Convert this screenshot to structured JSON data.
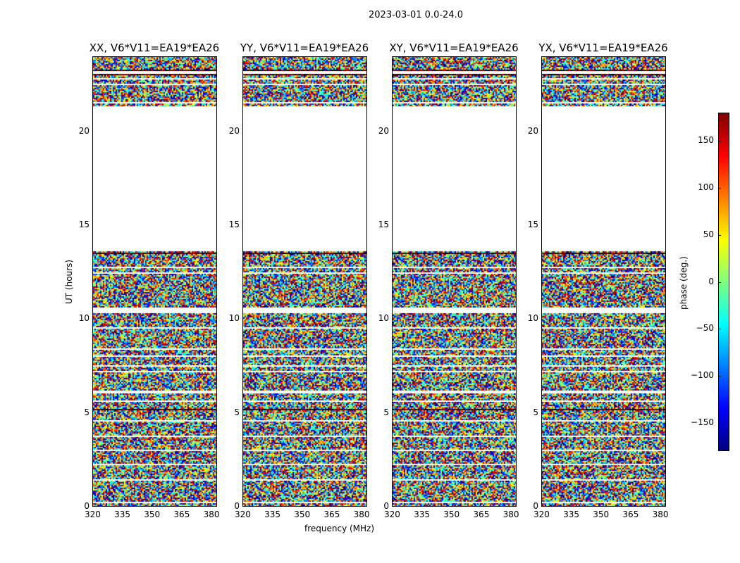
{
  "chart_data": {
    "type": "heatmap",
    "title": "2023-03-01 0.0-24.0",
    "xlabel": "frequency (MHz)",
    "ylabel": "UT (hours)",
    "xlim": [
      320,
      383
    ],
    "ylim": [
      0,
      24
    ],
    "xticks": [
      "320",
      "335",
      "350",
      "365",
      "380"
    ],
    "yticks": [
      "0",
      "5",
      "10",
      "15",
      "20"
    ],
    "colorbar": {
      "label": "phase (deg.)",
      "range": [
        -180,
        180
      ],
      "ticks": [
        "150",
        "100",
        "50",
        "0",
        "−50",
        "−100",
        "−150"
      ],
      "colormap": "jet"
    },
    "panels": [
      {
        "title": "XX, V6*V11=EA19*EA26"
      },
      {
        "title": "YY, V6*V11=EA19*EA26"
      },
      {
        "title": "XY, V6*V11=EA19*EA26"
      },
      {
        "title": "YX, V6*V11=EA19*EA26"
      }
    ],
    "values_description_only": "random phase noise",
    "blank_time_ranges_hours": [
      [
        0.15,
        0.22
      ],
      [
        1.35,
        1.42
      ],
      [
        2.2,
        2.27
      ],
      [
        2.95,
        3.02
      ],
      [
        3.7,
        3.77
      ],
      [
        4.55,
        4.6
      ],
      [
        5.55,
        5.62
      ],
      [
        6.0,
        6.2
      ],
      [
        7.15,
        7.22
      ],
      [
        7.45,
        7.52
      ],
      [
        8.0,
        8.07
      ],
      [
        8.35,
        8.42
      ],
      [
        9.5,
        9.57
      ],
      [
        10.3,
        10.6
      ],
      [
        12.42,
        12.48
      ],
      [
        12.75,
        12.82
      ],
      [
        13.6,
        21.4
      ],
      [
        21.5,
        21.62
      ],
      [
        22.5,
        22.57
      ],
      [
        22.82,
        22.88
      ],
      [
        23.1,
        23.22
      ]
    ],
    "dark_time_ranges_hours": [
      [
        5.1,
        5.2
      ],
      [
        23.0,
        23.08
      ],
      [
        23.25,
        23.3
      ],
      [
        13.5,
        13.55
      ]
    ]
  }
}
